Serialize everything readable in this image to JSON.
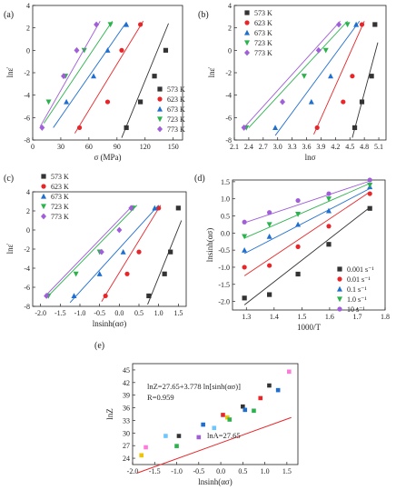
{
  "figure": {
    "panels": [
      "(a)",
      "(b)",
      "(c)",
      "(d)",
      "(e)"
    ]
  },
  "chart_data": [
    {
      "panel": "(a)",
      "type": "scatter",
      "xlabel": "σ (MPa)",
      "ylabel": "lnε̇",
      "xlim": [
        0,
        160
      ],
      "ylim": [
        -8,
        4
      ],
      "xticks": [
        0,
        30,
        60,
        90,
        120,
        150
      ],
      "yticks": [
        -8,
        -6,
        -4,
        -2,
        0,
        2,
        4
      ],
      "legend": "bottom-right",
      "series": [
        {
          "name": "573 K",
          "color": "#333333",
          "marker": "square",
          "x": [
            100,
            115,
            130,
            142
          ],
          "y": [
            -6.9,
            -4.6,
            -2.3,
            0
          ],
          "fit": [
            [
              95,
              -7.8
            ],
            [
              145,
              2.4
            ]
          ]
        },
        {
          "name": "623 K",
          "color": "#e8262a",
          "marker": "circle",
          "x": [
            50,
            80,
            95,
            115
          ],
          "y": [
            -6.9,
            -4.6,
            0,
            2.3
          ],
          "fit": [
            [
              45,
              -7.4
            ],
            [
              118,
              2.6
            ]
          ]
        },
        {
          "name": "673 K",
          "color": "#1f6fd0",
          "marker": "triangle",
          "x": [
            36,
            65,
            80,
            100
          ],
          "y": [
            -4.6,
            -2.3,
            0,
            2.3
          ],
          "fit": [
            [
              22,
              -6.9
            ],
            [
              100,
              2.5
            ]
          ]
        },
        {
          "name": "723 K",
          "color": "#2bb24c",
          "marker": "triangle-down",
          "x": [
            17,
            35,
            55,
            83
          ],
          "y": [
            -4.6,
            -2.3,
            0,
            2.3
          ],
          "fit": [
            [
              12,
              -6.5
            ],
            [
              85,
              2.6
            ]
          ]
        },
        {
          "name": "773 K",
          "color": "#a05ed8",
          "marker": "diamond",
          "x": [
            10,
            33,
            47,
            68
          ],
          "y": [
            -6.9,
            -2.3,
            0,
            2.3
          ],
          "fit": [
            [
              8,
              -6.8
            ],
            [
              72,
              2.6
            ]
          ]
        }
      ]
    },
    {
      "panel": "(b)",
      "type": "scatter",
      "xlabel": "lnσ",
      "ylabel": "lnε̇",
      "xlim": [
        2.1,
        5.25
      ],
      "ylim": [
        -8,
        4
      ],
      "xticks": [
        2.1,
        2.4,
        2.7,
        3.0,
        3.3,
        3.6,
        3.9,
        4.2,
        4.5,
        4.8,
        5.1
      ],
      "yticks": [
        -8,
        -6,
        -4,
        -2,
        0,
        2,
        4
      ],
      "legend": "top-left",
      "series": [
        {
          "name": "573 K",
          "color": "#333333",
          "marker": "square",
          "x": [
            4.6,
            4.75,
            4.95,
            5.02
          ],
          "y": [
            -6.9,
            -4.6,
            -2.3,
            2.3
          ],
          "fit": [
            [
              4.55,
              -7.8
            ],
            [
              5.08,
              0.7
            ]
          ]
        },
        {
          "name": "623 K",
          "color": "#e8262a",
          "marker": "circle",
          "x": [
            3.82,
            4.36,
            4.55,
            4.75
          ],
          "y": [
            -6.9,
            -4.6,
            -2.3,
            2.3
          ],
          "fit": [
            [
              3.75,
              -7.5
            ],
            [
              4.8,
              2.6
            ]
          ]
        },
        {
          "name": "673 K",
          "color": "#1f6fd0",
          "marker": "triangle",
          "x": [
            2.95,
            3.7,
            4.1,
            4.63
          ],
          "y": [
            -6.9,
            -4.6,
            -2.3,
            2.3
          ],
          "fit": [
            [
              2.95,
              -7.6
            ],
            [
              4.7,
              2.6
            ]
          ]
        },
        {
          "name": "723 K",
          "color": "#2bb24c",
          "marker": "triangle-down",
          "x": [
            2.35,
            3.55,
            4.0,
            4.45
          ],
          "y": [
            -6.9,
            -2.3,
            0,
            2.3
          ],
          "fit": [
            [
              2.4,
              -6.9
            ],
            [
              4.45,
              2.6
            ]
          ]
        },
        {
          "name": "773 K",
          "color": "#a05ed8",
          "marker": "diamond",
          "x": [
            2.3,
            3.1,
            3.85,
            4.27
          ],
          "y": [
            -6.9,
            -4.6,
            0,
            2.3
          ],
          "fit": [
            [
              2.3,
              -6.9
            ],
            [
              4.3,
              2.6
            ]
          ]
        }
      ]
    },
    {
      "panel": "(c)",
      "type": "scatter",
      "xlabel": "lnsinh(ασ)",
      "ylabel": "lnε̇",
      "xlim": [
        -2.2,
        1.7
      ],
      "ylim": [
        -8,
        4
      ],
      "xticks": [
        -2.0,
        -1.5,
        -1.0,
        -0.5,
        0.0,
        0.5,
        1.0,
        1.5
      ],
      "yticks": [
        -8,
        -6,
        -4,
        -2,
        0,
        2,
        4
      ],
      "legend": "top-left",
      "series": [
        {
          "name": "573 K",
          "color": "#333333",
          "marker": "square",
          "x": [
            0.75,
            1.15,
            1.3,
            1.5
          ],
          "y": [
            -6.9,
            -4.6,
            -2.3,
            2.3
          ],
          "fit": [
            [
              0.72,
              -7.8
            ],
            [
              1.58,
              1.0
            ]
          ]
        },
        {
          "name": "623 K",
          "color": "#e8262a",
          "marker": "circle",
          "x": [
            -0.35,
            0.2,
            0.5,
            1.0
          ],
          "y": [
            -6.9,
            -4.6,
            -2.3,
            2.3
          ],
          "fit": [
            [
              -0.45,
              -7.5
            ],
            [
              1.05,
              2.6
            ]
          ]
        },
        {
          "name": "673 K",
          "color": "#1f6fd0",
          "marker": "triangle",
          "x": [
            -1.15,
            -0.5,
            0.1,
            0.9
          ],
          "y": [
            -6.9,
            -4.6,
            -2.3,
            2.3
          ],
          "fit": [
            [
              -1.25,
              -7.6
            ],
            [
              1.0,
              2.6
            ]
          ]
        },
        {
          "name": "723 K",
          "color": "#2bb24c",
          "marker": "triangle-down",
          "x": [
            -1.8,
            -1.1,
            -0.5,
            0.35
          ],
          "y": [
            -6.9,
            -4.6,
            -2.3,
            2.3
          ],
          "fit": [
            [
              -1.85,
              -7.1
            ],
            [
              0.45,
              2.6
            ]
          ]
        },
        {
          "name": "773 K",
          "color": "#a05ed8",
          "marker": "diamond",
          "x": [
            -1.85,
            -0.45,
            0.0,
            0.3
          ],
          "y": [
            -6.9,
            -2.3,
            0,
            2.3
          ],
          "fit": [
            [
              -1.9,
              -7.0
            ],
            [
              0.35,
              2.6
            ]
          ]
        }
      ]
    },
    {
      "panel": "(d)",
      "type": "scatter",
      "xlabel": "1000/T",
      "ylabel": "lnsinh(ασ)",
      "xlim": [
        1.25,
        1.8
      ],
      "ylim": [
        -2.25,
        1.55
      ],
      "xticks": [
        1.3,
        1.4,
        1.5,
        1.6,
        1.7,
        1.8
      ],
      "yticks": [
        -2.0,
        -1.5,
        -1.0,
        -0.5,
        0.0,
        0.5,
        1.0,
        1.5
      ],
      "legend": "bottom-right",
      "series": [
        {
          "name": "0.001 s-1",
          "color": "#333333",
          "marker": "square",
          "x": [
            1.293,
            1.383,
            1.486,
            1.597,
            1.745
          ],
          "y": [
            -1.9,
            -1.8,
            -1.2,
            -0.33,
            0.72
          ],
          "fit": [
            [
              1.293,
              -2.1
            ],
            [
              1.745,
              0.75
            ]
          ]
        },
        {
          "name": "0.01 s-1",
          "color": "#e8262a",
          "marker": "circle",
          "x": [
            1.293,
            1.383,
            1.486,
            1.597,
            1.745
          ],
          "y": [
            -1.0,
            -0.95,
            -0.4,
            0.2,
            1.15
          ],
          "fit": [
            [
              1.293,
              -1.25
            ],
            [
              1.745,
              1.2
            ]
          ]
        },
        {
          "name": "0.1 s-1",
          "color": "#1f6fd0",
          "marker": "triangle",
          "x": [
            1.293,
            1.383,
            1.486,
            1.597,
            1.745
          ],
          "y": [
            -0.5,
            -0.1,
            0.25,
            0.65,
            1.35
          ],
          "fit": [
            [
              1.293,
              -0.6
            ],
            [
              1.745,
              1.3
            ]
          ]
        },
        {
          "name": "1.0 s-1",
          "color": "#2bb24c",
          "marker": "triangle-down",
          "x": [
            1.293,
            1.383,
            1.486,
            1.597,
            1.745
          ],
          "y": [
            -0.1,
            0.25,
            0.55,
            1.0,
            1.4
          ],
          "fit": [
            [
              1.293,
              -0.15
            ],
            [
              1.745,
              1.45
            ]
          ]
        },
        {
          "name": "10 s-1",
          "color": "#a05ed8",
          "marker": "circle",
          "x": [
            1.293,
            1.383,
            1.486,
            1.597,
            1.745
          ],
          "y": [
            0.32,
            0.6,
            0.95,
            1.15,
            1.55
          ],
          "fit": [
            [
              1.293,
              0.3
            ],
            [
              1.745,
              1.52
            ]
          ]
        }
      ]
    },
    {
      "panel": "(e)",
      "type": "scatter",
      "xlabel": "lnsinh(ασ)",
      "ylabel": "lnZ",
      "xlim": [
        -2.0,
        1.75
      ],
      "ylim": [
        22.5,
        46.5
      ],
      "xticks": [
        -2.0,
        -1.5,
        -1.0,
        -0.5,
        0.0,
        0.5,
        1.0,
        1.5
      ],
      "yticks": [
        24,
        27,
        30,
        33,
        36,
        39,
        42,
        45
      ],
      "annotations": [
        "lnZ=27.65+3.778 ln[sinh(ασ)]",
        "R=0.959",
        "lnA=27.65"
      ],
      "fit": [
        [
          -1.9,
          20.47
        ],
        [
          1.6,
          33.69
        ]
      ],
      "points": [
        {
          "x": -1.8,
          "y": 24.7,
          "color": "#f2c400"
        },
        {
          "x": -1.7,
          "y": 26.6,
          "color": "#ff7ad9"
        },
        {
          "x": -1.25,
          "y": 29.3,
          "color": "#6ec6ff"
        },
        {
          "x": -1.0,
          "y": 26.9,
          "color": "#2bb24c"
        },
        {
          "x": -0.95,
          "y": 29.3,
          "color": "#333333"
        },
        {
          "x": -0.5,
          "y": 29.0,
          "color": "#a05ed8"
        },
        {
          "x": -0.4,
          "y": 32.0,
          "color": "#1f6fd0"
        },
        {
          "x": -0.15,
          "y": 31.2,
          "color": "#6ec6ff"
        },
        {
          "x": 0.05,
          "y": 34.3,
          "color": "#e8262a"
        },
        {
          "x": 0.15,
          "y": 33.7,
          "color": "#f2c400"
        },
        {
          "x": 0.2,
          "y": 33.2,
          "color": "#2bb24c"
        },
        {
          "x": 0.5,
          "y": 36.3,
          "color": "#333333"
        },
        {
          "x": 0.55,
          "y": 35.5,
          "color": "#1f6fd0"
        },
        {
          "x": 0.75,
          "y": 35.3,
          "color": "#2bb24c"
        },
        {
          "x": 0.9,
          "y": 38.3,
          "color": "#e8262a"
        },
        {
          "x": 1.1,
          "y": 41.3,
          "color": "#333333"
        },
        {
          "x": 1.3,
          "y": 40.2,
          "color": "#1f6fd0"
        },
        {
          "x": 1.55,
          "y": 44.6,
          "color": "#ff7ad9"
        }
      ]
    }
  ]
}
